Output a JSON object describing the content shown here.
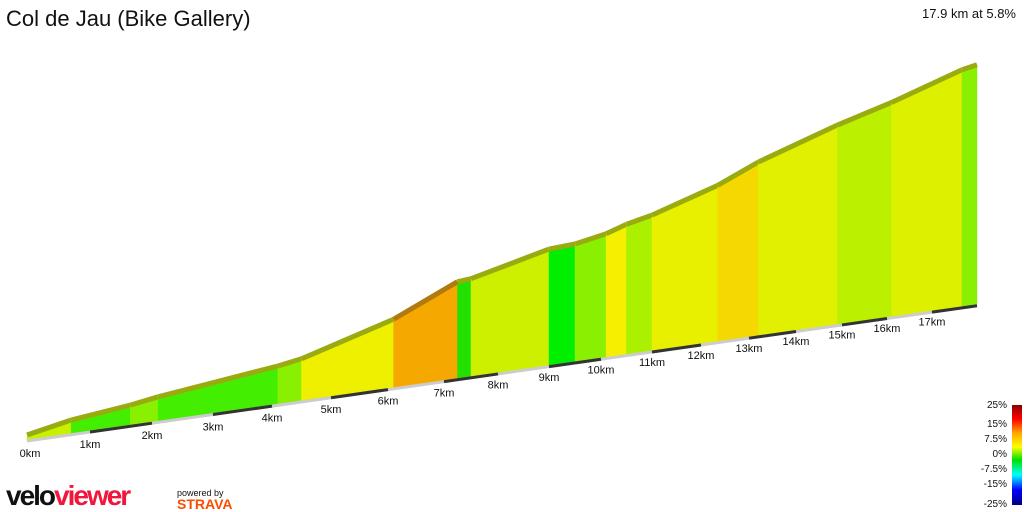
{
  "header": {
    "title": "Col de Jau (Bike Gallery)",
    "summary": "17.9 km at 5.8%"
  },
  "chart_data": {
    "type": "area",
    "title": "Col de Jau (Bike Gallery)",
    "distance_total_km": 17.9,
    "average_gradient_pct": 5.8,
    "x_ticks": [
      "0km",
      "1km",
      "2km",
      "3km",
      "4km",
      "5km",
      "6km",
      "7km",
      "8km",
      "9km",
      "10km",
      "11km",
      "12km",
      "13km",
      "14km",
      "15km",
      "16km",
      "17km"
    ],
    "segments": [
      {
        "start_km": 0.0,
        "end_km": 0.7,
        "gradient_pct": 4.5,
        "color": "#c8f000"
      },
      {
        "start_km": 0.7,
        "end_km": 1.65,
        "gradient_pct": 2.5,
        "color": "#44ee00"
      },
      {
        "start_km": 1.65,
        "end_km": 2.1,
        "gradient_pct": 3.5,
        "color": "#88f000"
      },
      {
        "start_km": 2.1,
        "end_km": 4.1,
        "gradient_pct": 2.5,
        "color": "#44ee00"
      },
      {
        "start_km": 4.1,
        "end_km": 4.5,
        "gradient_pct": 3.5,
        "color": "#88f000"
      },
      {
        "start_km": 4.5,
        "end_km": 6.1,
        "gradient_pct": 6.0,
        "color": "#eef000"
      },
      {
        "start_km": 6.1,
        "end_km": 7.25,
        "gradient_pct": 9.0,
        "color": "#f5a800"
      },
      {
        "start_km": 7.25,
        "end_km": 7.5,
        "gradient_pct": 1.5,
        "color": "#22e000"
      },
      {
        "start_km": 7.5,
        "end_km": 9.0,
        "gradient_pct": 4.5,
        "color": "#ccf000"
      },
      {
        "start_km": 9.0,
        "end_km": 9.5,
        "gradient_pct": 1.0,
        "color": "#00ee00"
      },
      {
        "start_km": 9.5,
        "end_km": 10.1,
        "gradient_pct": 3.5,
        "color": "#88f000"
      },
      {
        "start_km": 10.1,
        "end_km": 10.5,
        "gradient_pct": 6.0,
        "color": "#f5f000"
      },
      {
        "start_km": 10.5,
        "end_km": 11.0,
        "gradient_pct": 4.0,
        "color": "#aaf000"
      },
      {
        "start_km": 11.0,
        "end_km": 12.35,
        "gradient_pct": 5.5,
        "color": "#e8f000"
      },
      {
        "start_km": 12.35,
        "end_km": 13.2,
        "gradient_pct": 7.5,
        "color": "#f5d800"
      },
      {
        "start_km": 13.2,
        "end_km": 14.9,
        "gradient_pct": 5.5,
        "color": "#e0f000"
      },
      {
        "start_km": 14.9,
        "end_km": 16.1,
        "gradient_pct": 4.5,
        "color": "#bbf000"
      },
      {
        "start_km": 16.1,
        "end_km": 17.6,
        "gradient_pct": 5.5,
        "color": "#dcf000"
      },
      {
        "start_km": 17.6,
        "end_km": 17.9,
        "gradient_pct": 3.5,
        "color": "#88f000"
      }
    ],
    "legend": {
      "labels": [
        "25%",
        "15%",
        "7.5%",
        "0%",
        "-7.5%",
        "-15%",
        "-25%"
      ],
      "placement": "bottom-right",
      "colors": [
        "#8b0000",
        "#ff0000",
        "#ffa500",
        "#ffff00",
        "#00e000",
        "#00ffff",
        "#0000ff",
        "#000080"
      ]
    }
  },
  "branding": {
    "logo_a": "velo",
    "logo_b": "viewer",
    "powered": "powered by",
    "strava": "STRAVA"
  }
}
